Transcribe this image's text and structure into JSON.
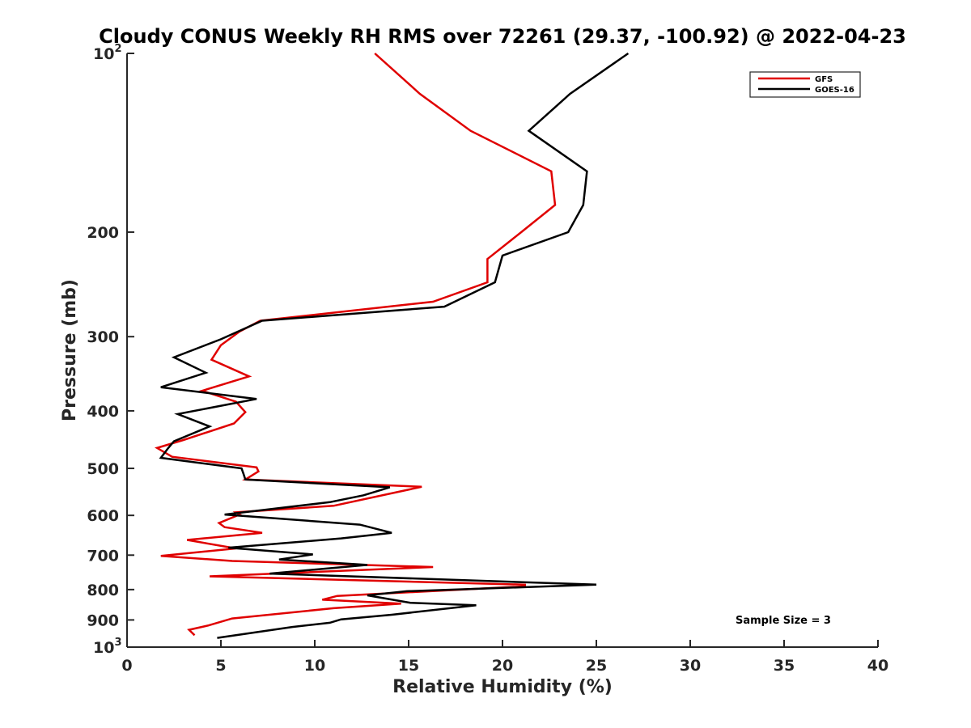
{
  "chart_data": {
    "type": "line",
    "title": "Cloudy CONUS Weekly RH RMS over 72261 (29.37, -100.92) @ 2022-04-23",
    "xlabel": "Relative Humidity (%)",
    "ylabel": "Pressure (mb)",
    "xlim": [
      0,
      40
    ],
    "ylim": [
      100,
      1000
    ],
    "y_scale": "log",
    "y_reversed": true,
    "grid": false,
    "legend_position": "top-right",
    "annotation": "Sample Size = 3",
    "x_ticks": [
      {
        "value": 0,
        "label": "0"
      },
      {
        "value": 5,
        "label": "5"
      },
      {
        "value": 10,
        "label": "10"
      },
      {
        "value": 15,
        "label": "15"
      },
      {
        "value": 20,
        "label": "20"
      },
      {
        "value": 25,
        "label": "25"
      },
      {
        "value": 30,
        "label": "30"
      },
      {
        "value": 35,
        "label": "35"
      },
      {
        "value": 40,
        "label": "40"
      }
    ],
    "y_ticks": [
      {
        "value": 100,
        "base": "10",
        "exp": "2"
      },
      {
        "value": 200,
        "base": "200",
        "exp": ""
      },
      {
        "value": 300,
        "base": "300",
        "exp": ""
      },
      {
        "value": 400,
        "base": "400",
        "exp": ""
      },
      {
        "value": 500,
        "base": "500",
        "exp": ""
      },
      {
        "value": 600,
        "base": "600",
        "exp": ""
      },
      {
        "value": 700,
        "base": "700",
        "exp": ""
      },
      {
        "value": 800,
        "base": "800",
        "exp": ""
      },
      {
        "value": 900,
        "base": "900",
        "exp": ""
      },
      {
        "value": 1000,
        "base": "10",
        "exp": "3"
      }
    ],
    "series": [
      {
        "name": "GFS",
        "color": "#e00000",
        "points": [
          [
            13.2,
            100
          ],
          [
            15.6,
            117
          ],
          [
            18.3,
            135
          ],
          [
            22.6,
            158
          ],
          [
            22.8,
            180
          ],
          [
            21.0,
            200
          ],
          [
            19.2,
            222
          ],
          [
            19.2,
            243
          ],
          [
            16.3,
            262
          ],
          [
            7.1,
            282
          ],
          [
            6.0,
            294
          ],
          [
            5.0,
            310
          ],
          [
            4.5,
            328
          ],
          [
            6.5,
            350
          ],
          [
            4.0,
            370
          ],
          [
            5.8,
            386
          ],
          [
            6.3,
            402
          ],
          [
            5.7,
            420
          ],
          [
            3.0,
            448
          ],
          [
            1.6,
            462
          ],
          [
            2.4,
            478
          ],
          [
            6.9,
            498
          ],
          [
            7.0,
            506
          ],
          [
            6.3,
            522
          ],
          [
            15.7,
            537
          ],
          [
            11.0,
            578
          ],
          [
            5.8,
            593
          ],
          [
            6.0,
            598
          ],
          [
            4.9,
            618
          ],
          [
            5.2,
            628
          ],
          [
            7.2,
            642
          ],
          [
            3.2,
            660
          ],
          [
            5.8,
            682
          ],
          [
            1.8,
            702
          ],
          [
            5.6,
            716
          ],
          [
            16.3,
            733
          ],
          [
            4.4,
            760
          ],
          [
            21.2,
            785
          ],
          [
            21.2,
            790
          ],
          [
            11.2,
            820
          ],
          [
            10.4,
            832
          ],
          [
            14.6,
            845
          ],
          [
            11.0,
            860
          ],
          [
            5.6,
            895
          ],
          [
            4.3,
            920
          ],
          [
            3.3,
            935
          ],
          [
            3.6,
            955
          ]
        ]
      },
      {
        "name": "GOES-16",
        "color": "#000000",
        "points": [
          [
            26.7,
            100
          ],
          [
            23.6,
            117
          ],
          [
            21.4,
            135
          ],
          [
            24.5,
            158
          ],
          [
            24.3,
            180
          ],
          [
            23.5,
            200
          ],
          [
            20.0,
            219
          ],
          [
            19.6,
            243
          ],
          [
            16.9,
            267
          ],
          [
            7.2,
            282
          ],
          [
            5.0,
            303
          ],
          [
            2.5,
            325
          ],
          [
            4.2,
            345
          ],
          [
            1.8,
            365
          ],
          [
            6.9,
            382
          ],
          [
            2.7,
            405
          ],
          [
            4.4,
            425
          ],
          [
            2.5,
            450
          ],
          [
            2.2,
            462
          ],
          [
            1.8,
            480
          ],
          [
            6.1,
            500
          ],
          [
            6.2,
            510
          ],
          [
            6.3,
            522
          ],
          [
            14.0,
            538
          ],
          [
            12.6,
            555
          ],
          [
            10.8,
            570
          ],
          [
            5.2,
            598
          ],
          [
            12.4,
            622
          ],
          [
            14.1,
            642
          ],
          [
            11.4,
            656
          ],
          [
            5.4,
            680
          ],
          [
            9.9,
            698
          ],
          [
            8.1,
            712
          ],
          [
            12.8,
            727
          ],
          [
            7.6,
            752
          ],
          [
            25.0,
            785
          ],
          [
            14.9,
            805
          ],
          [
            12.8,
            818
          ],
          [
            15.1,
            842
          ],
          [
            18.6,
            850
          ],
          [
            14.1,
            882
          ],
          [
            11.4,
            898
          ],
          [
            10.8,
            910
          ],
          [
            8.8,
            925
          ],
          [
            4.8,
            965
          ]
        ]
      }
    ]
  }
}
